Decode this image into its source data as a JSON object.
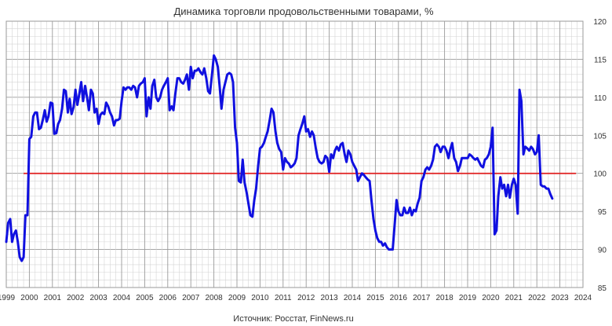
{
  "chart_data": {
    "type": "line",
    "title": "Динамика торговли продовольственными товарами, %",
    "source": "Источник: Росстат, FinNews.ru",
    "xlabel": "",
    "ylabel": "",
    "xlim": [
      1999.0,
      2024.0
    ],
    "ylim": [
      85,
      120
    ],
    "x_ticks": [
      "1999",
      "2000",
      "2001",
      "2002",
      "2003",
      "2004",
      "2005",
      "2006",
      "2007",
      "2008",
      "2009",
      "2010",
      "2011",
      "2012",
      "2013",
      "2014",
      "2015",
      "2016",
      "2017",
      "2018",
      "2019",
      "2020",
      "2021",
      "2022",
      "2023",
      "2024"
    ],
    "y_ticks": [
      "85",
      "90",
      "95",
      "100",
      "105",
      "110",
      "115",
      "120"
    ],
    "y_axis_side": "right",
    "grid": true,
    "legend": "none",
    "series": [
      {
        "color": "#1010e0",
        "points": [
          [
            1999.0,
            91.0
          ],
          [
            1999.08,
            93.5
          ],
          [
            1999.17,
            94.0
          ],
          [
            1999.25,
            91.0
          ],
          [
            1999.33,
            92.0
          ],
          [
            1999.42,
            92.5
          ],
          [
            1999.5,
            91.0
          ],
          [
            1999.58,
            89.0
          ],
          [
            1999.67,
            88.5
          ],
          [
            1999.75,
            89.0
          ],
          [
            1999.83,
            94.5
          ],
          [
            1999.92,
            94.5
          ],
          [
            2000.0,
            104.5
          ],
          [
            2000.08,
            104.8
          ],
          [
            2000.17,
            107.5
          ],
          [
            2000.25,
            108.0
          ],
          [
            2000.33,
            108.0
          ],
          [
            2000.42,
            105.8
          ],
          [
            2000.5,
            106.0
          ],
          [
            2000.58,
            107.0
          ],
          [
            2000.67,
            108.3
          ],
          [
            2000.75,
            106.8
          ],
          [
            2000.83,
            107.5
          ],
          [
            2000.92,
            109.3
          ],
          [
            2001.0,
            109.2
          ],
          [
            2001.08,
            105.2
          ],
          [
            2001.17,
            105.3
          ],
          [
            2001.25,
            106.5
          ],
          [
            2001.33,
            107.0
          ],
          [
            2001.42,
            108.5
          ],
          [
            2001.5,
            111.0
          ],
          [
            2001.58,
            110.8
          ],
          [
            2001.67,
            108.0
          ],
          [
            2001.75,
            109.8
          ],
          [
            2001.83,
            107.8
          ],
          [
            2001.92,
            108.7
          ],
          [
            2002.0,
            111.0
          ],
          [
            2002.08,
            109.0
          ],
          [
            2002.17,
            110.5
          ],
          [
            2002.25,
            112.0
          ],
          [
            2002.33,
            109.5
          ],
          [
            2002.42,
            111.5
          ],
          [
            2002.5,
            110.0
          ],
          [
            2002.58,
            108.3
          ],
          [
            2002.67,
            111.0
          ],
          [
            2002.75,
            110.5
          ],
          [
            2002.83,
            108.0
          ],
          [
            2002.92,
            108.5
          ],
          [
            2003.0,
            106.5
          ],
          [
            2003.08,
            107.7
          ],
          [
            2003.17,
            108.0
          ],
          [
            2003.25,
            107.8
          ],
          [
            2003.33,
            109.3
          ],
          [
            2003.42,
            108.8
          ],
          [
            2003.5,
            108.0
          ],
          [
            2003.58,
            107.5
          ],
          [
            2003.67,
            106.3
          ],
          [
            2003.75,
            107.0
          ],
          [
            2003.83,
            107.0
          ],
          [
            2003.92,
            107.2
          ],
          [
            2004.0,
            109.5
          ],
          [
            2004.08,
            111.3
          ],
          [
            2004.17,
            111.0
          ],
          [
            2004.25,
            111.3
          ],
          [
            2004.33,
            111.3
          ],
          [
            2004.42,
            111.0
          ],
          [
            2004.5,
            111.5
          ],
          [
            2004.58,
            111.3
          ],
          [
            2004.67,
            110.0
          ],
          [
            2004.75,
            111.5
          ],
          [
            2004.83,
            111.8
          ],
          [
            2004.92,
            112.0
          ],
          [
            2005.0,
            112.5
          ],
          [
            2005.08,
            107.5
          ],
          [
            2005.17,
            110.0
          ],
          [
            2005.25,
            108.5
          ],
          [
            2005.33,
            111.5
          ],
          [
            2005.42,
            112.3
          ],
          [
            2005.5,
            110.0
          ],
          [
            2005.58,
            109.5
          ],
          [
            2005.67,
            110.0
          ],
          [
            2005.75,
            111.0
          ],
          [
            2005.83,
            111.5
          ],
          [
            2005.92,
            112.0
          ],
          [
            2006.0,
            112.5
          ],
          [
            2006.08,
            108.3
          ],
          [
            2006.17,
            108.8
          ],
          [
            2006.25,
            108.3
          ],
          [
            2006.33,
            110.5
          ],
          [
            2006.42,
            112.5
          ],
          [
            2006.5,
            112.5
          ],
          [
            2006.58,
            112.0
          ],
          [
            2006.67,
            111.8
          ],
          [
            2006.75,
            112.3
          ],
          [
            2006.83,
            113.0
          ],
          [
            2006.92,
            111.0
          ],
          [
            2007.0,
            114.0
          ],
          [
            2007.08,
            112.5
          ],
          [
            2007.17,
            113.5
          ],
          [
            2007.25,
            113.5
          ],
          [
            2007.33,
            113.8
          ],
          [
            2007.42,
            113.3
          ],
          [
            2007.5,
            113.0
          ],
          [
            2007.58,
            113.8
          ],
          [
            2007.67,
            112.5
          ],
          [
            2007.75,
            110.8
          ],
          [
            2007.83,
            110.5
          ],
          [
            2007.92,
            113.0
          ],
          [
            2008.0,
            115.5
          ],
          [
            2008.08,
            115.0
          ],
          [
            2008.17,
            114.0
          ],
          [
            2008.25,
            111.5
          ],
          [
            2008.33,
            108.5
          ],
          [
            2008.42,
            111.0
          ],
          [
            2008.5,
            112.0
          ],
          [
            2008.58,
            113.0
          ],
          [
            2008.67,
            113.2
          ],
          [
            2008.75,
            113.0
          ],
          [
            2008.83,
            112.0
          ],
          [
            2008.92,
            106.0
          ],
          [
            2009.0,
            104.0
          ],
          [
            2009.08,
            99.0
          ],
          [
            2009.17,
            98.8
          ],
          [
            2009.25,
            101.8
          ],
          [
            2009.33,
            98.8
          ],
          [
            2009.42,
            97.5
          ],
          [
            2009.5,
            96.0
          ],
          [
            2009.58,
            94.5
          ],
          [
            2009.67,
            94.3
          ],
          [
            2009.75,
            96.5
          ],
          [
            2009.83,
            98.0
          ],
          [
            2009.92,
            101.0
          ],
          [
            2010.0,
            103.3
          ],
          [
            2010.08,
            103.5
          ],
          [
            2010.17,
            104.0
          ],
          [
            2010.25,
            104.8
          ],
          [
            2010.33,
            105.5
          ],
          [
            2010.42,
            107.0
          ],
          [
            2010.5,
            108.5
          ],
          [
            2010.58,
            108.0
          ],
          [
            2010.67,
            105.5
          ],
          [
            2010.75,
            104.0
          ],
          [
            2010.83,
            103.2
          ],
          [
            2010.92,
            102.8
          ],
          [
            2011.0,
            100.5
          ],
          [
            2011.08,
            102.0
          ],
          [
            2011.17,
            101.5
          ],
          [
            2011.25,
            101.3
          ],
          [
            2011.33,
            100.8
          ],
          [
            2011.42,
            101.0
          ],
          [
            2011.5,
            101.3
          ],
          [
            2011.58,
            102.0
          ],
          [
            2011.67,
            105.0
          ],
          [
            2011.75,
            105.8
          ],
          [
            2011.83,
            106.5
          ],
          [
            2011.92,
            107.5
          ],
          [
            2012.0,
            105.5
          ],
          [
            2012.08,
            105.8
          ],
          [
            2012.17,
            104.8
          ],
          [
            2012.25,
            105.5
          ],
          [
            2012.33,
            105.0
          ],
          [
            2012.42,
            103.3
          ],
          [
            2012.5,
            102.0
          ],
          [
            2012.58,
            101.5
          ],
          [
            2012.67,
            101.3
          ],
          [
            2012.75,
            101.5
          ],
          [
            2012.83,
            102.3
          ],
          [
            2012.92,
            102.0
          ],
          [
            2013.0,
            100.2
          ],
          [
            2013.08,
            102.5
          ],
          [
            2013.17,
            102.0
          ],
          [
            2013.25,
            103.0
          ],
          [
            2013.33,
            103.5
          ],
          [
            2013.42,
            103.0
          ],
          [
            2013.5,
            103.8
          ],
          [
            2013.58,
            104.0
          ],
          [
            2013.67,
            102.5
          ],
          [
            2013.75,
            101.5
          ],
          [
            2013.83,
            103.0
          ],
          [
            2013.92,
            102.5
          ],
          [
            2014.0,
            101.5
          ],
          [
            2014.08,
            101.0
          ],
          [
            2014.17,
            100.5
          ],
          [
            2014.25,
            99.0
          ],
          [
            2014.33,
            99.5
          ],
          [
            2014.42,
            100.0
          ],
          [
            2014.5,
            99.8
          ],
          [
            2014.58,
            99.5
          ],
          [
            2014.67,
            99.2
          ],
          [
            2014.75,
            99.0
          ],
          [
            2014.83,
            96.5
          ],
          [
            2014.92,
            94.0
          ],
          [
            2015.0,
            92.5
          ],
          [
            2015.08,
            91.5
          ],
          [
            2015.17,
            91.0
          ],
          [
            2015.25,
            91.0
          ],
          [
            2015.33,
            90.5
          ],
          [
            2015.42,
            90.8
          ],
          [
            2015.5,
            90.3
          ],
          [
            2015.58,
            90.0
          ],
          [
            2015.67,
            90.0
          ],
          [
            2015.75,
            90.0
          ],
          [
            2015.83,
            93.0
          ],
          [
            2015.92,
            96.5
          ],
          [
            2016.0,
            95.0
          ],
          [
            2016.08,
            94.5
          ],
          [
            2016.17,
            94.5
          ],
          [
            2016.25,
            95.5
          ],
          [
            2016.33,
            94.8
          ],
          [
            2016.42,
            94.8
          ],
          [
            2016.5,
            95.5
          ],
          [
            2016.58,
            94.5
          ],
          [
            2016.67,
            95.2
          ],
          [
            2016.75,
            95.0
          ],
          [
            2016.83,
            96.0
          ],
          [
            2016.92,
            96.8
          ],
          [
            2017.0,
            99.0
          ],
          [
            2017.08,
            99.5
          ],
          [
            2017.17,
            100.5
          ],
          [
            2017.25,
            100.8
          ],
          [
            2017.33,
            100.5
          ],
          [
            2017.42,
            101.0
          ],
          [
            2017.5,
            101.8
          ],
          [
            2017.58,
            103.5
          ],
          [
            2017.67,
            103.8
          ],
          [
            2017.75,
            103.5
          ],
          [
            2017.83,
            102.8
          ],
          [
            2017.92,
            103.5
          ],
          [
            2018.0,
            103.5
          ],
          [
            2018.08,
            103.0
          ],
          [
            2018.17,
            102.0
          ],
          [
            2018.25,
            103.2
          ],
          [
            2018.33,
            104.0
          ],
          [
            2018.42,
            102.0
          ],
          [
            2018.5,
            101.5
          ],
          [
            2018.58,
            100.3
          ],
          [
            2018.67,
            101.0
          ],
          [
            2018.75,
            102.0
          ],
          [
            2018.83,
            102.0
          ],
          [
            2018.92,
            102.0
          ],
          [
            2019.0,
            102.0
          ],
          [
            2019.08,
            102.5
          ],
          [
            2019.17,
            102.3
          ],
          [
            2019.25,
            102.0
          ],
          [
            2019.33,
            101.8
          ],
          [
            2019.42,
            102.0
          ],
          [
            2019.5,
            101.5
          ],
          [
            2019.58,
            101.0
          ],
          [
            2019.67,
            100.8
          ],
          [
            2019.75,
            101.8
          ],
          [
            2019.83,
            102.0
          ],
          [
            2019.92,
            102.5
          ],
          [
            2020.0,
            103.5
          ],
          [
            2020.08,
            106.0
          ],
          [
            2020.17,
            92.0
          ],
          [
            2020.25,
            92.5
          ],
          [
            2020.33,
            97.0
          ],
          [
            2020.42,
            99.5
          ],
          [
            2020.5,
            98.0
          ],
          [
            2020.58,
            98.5
          ],
          [
            2020.67,
            97.0
          ],
          [
            2020.75,
            98.5
          ],
          [
            2020.83,
            96.8
          ],
          [
            2020.92,
            98.5
          ],
          [
            2021.0,
            99.3
          ],
          [
            2021.08,
            98.5
          ],
          [
            2021.17,
            94.7
          ],
          [
            2021.25,
            111.0
          ],
          [
            2021.33,
            109.5
          ],
          [
            2021.42,
            102.5
          ],
          [
            2021.5,
            103.5
          ],
          [
            2021.58,
            103.3
          ],
          [
            2021.67,
            103.0
          ],
          [
            2021.75,
            103.5
          ],
          [
            2021.83,
            103.2
          ],
          [
            2021.92,
            102.5
          ],
          [
            2022.0,
            102.8
          ],
          [
            2022.08,
            105.0
          ],
          [
            2022.17,
            98.5
          ],
          [
            2022.25,
            98.3
          ],
          [
            2022.33,
            98.3
          ],
          [
            2022.42,
            98.0
          ],
          [
            2022.5,
            98.0
          ],
          [
            2022.58,
            97.3
          ],
          [
            2022.67,
            96.7
          ]
        ]
      }
    ],
    "reference_line": {
      "y": 100,
      "color": "#e02020"
    }
  }
}
